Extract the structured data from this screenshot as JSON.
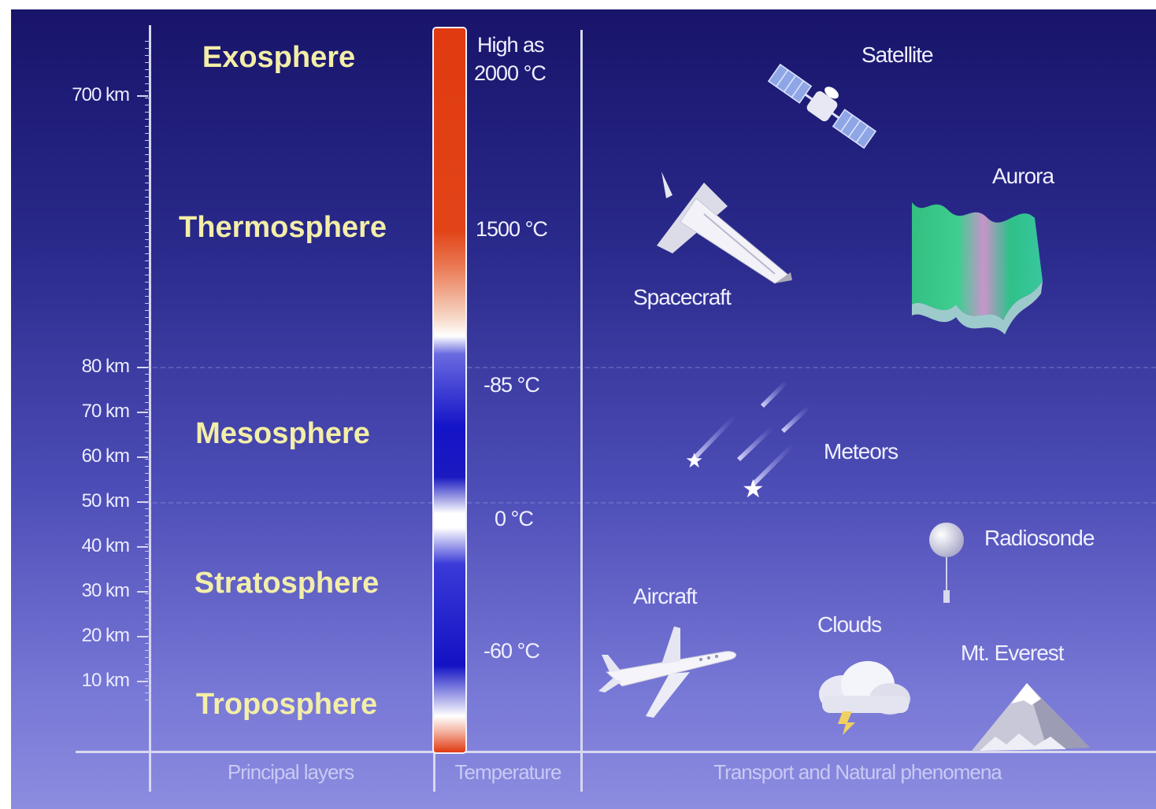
{
  "layers": {
    "exosphere": "Exosphere",
    "thermosphere": "Thermosphere",
    "mesosphere": "Mesosphere",
    "stratosphere": "Stratosphere",
    "troposphere": "Troposphere"
  },
  "altitude_ticks": [
    "700 km",
    "80 km",
    "70 km",
    "60 km",
    "50 km",
    "40 km",
    "30 km",
    "20 km",
    "10 km"
  ],
  "temperatures": {
    "high_line1": "High as",
    "high_line2": "2000 °C",
    "t1500": "1500 °C",
    "t_minus85": "-85 °C",
    "t0": "0 °C",
    "t_minus60": "-60 °C"
  },
  "phenomena": {
    "satellite": "Satellite",
    "aurora": "Aurora",
    "spacecraft": "Spacecraft",
    "meteors": "Meteors",
    "radiosonde": "Radiosonde",
    "aircraft": "Aircraft",
    "clouds": "Clouds",
    "everest": "Mt. Everest"
  },
  "footer": {
    "layers": "Principal layers",
    "temperature": "Temperature",
    "transport": "Transport and Natural phenomena"
  },
  "colors": {
    "background_top": "#18146a",
    "background_bottom": "#8c8ce0",
    "layer_text": "#f3eea8",
    "temp_hot": "#e03a10",
    "temp_cold": "#1414c8"
  }
}
